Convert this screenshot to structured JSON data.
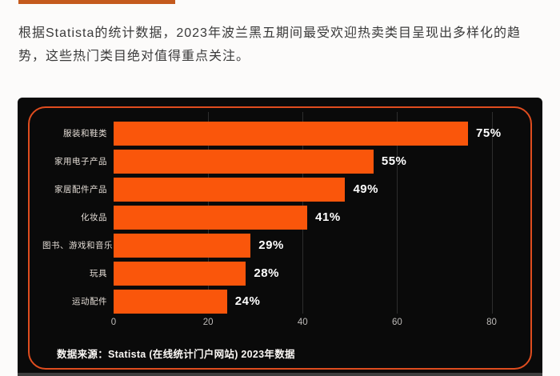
{
  "page": {
    "background": "#fcfbfa",
    "accent_strip_color": "#c45a1d",
    "text_color": "#3a3a3a",
    "bottom_strip_color": "#3e3e3e"
  },
  "intro": {
    "text": "根据Statista的统计数据，2023年波兰黑五期间最受欢迎热卖类目呈现出多样化的趋势，这些热门类目绝对值得重点关注。"
  },
  "chart_data": {
    "type": "bar",
    "orientation": "horizontal",
    "title": "",
    "categories": [
      "服装和鞋类",
      "家用电子产品",
      "家居配件产品",
      "化妆品",
      "图书、游戏和音乐",
      "玩具",
      "运动配件"
    ],
    "values": [
      75,
      55,
      49,
      41,
      29,
      28,
      24
    ],
    "value_labels": [
      "75%",
      "55%",
      "49%",
      "41%",
      "29%",
      "28%",
      "24%"
    ],
    "x_ticks": [
      0,
      20,
      40,
      60,
      80
    ],
    "xlim": [
      0,
      86
    ],
    "grid": "vertical gridlines at ticks, behind bars",
    "legend": "none",
    "source": "数据来源：Statista (在线统计门户网站) 2023年数据",
    "colors": {
      "bar": "#fa560b",
      "panel_background": "#0a0a0a",
      "frame_border": "#e04d1f",
      "category_label": "#e4ddd6",
      "value_label": "#ffffff",
      "tick_label": "#bdbab8",
      "gridline": "#2e2e2e",
      "source_text": "#faf7f4"
    }
  }
}
